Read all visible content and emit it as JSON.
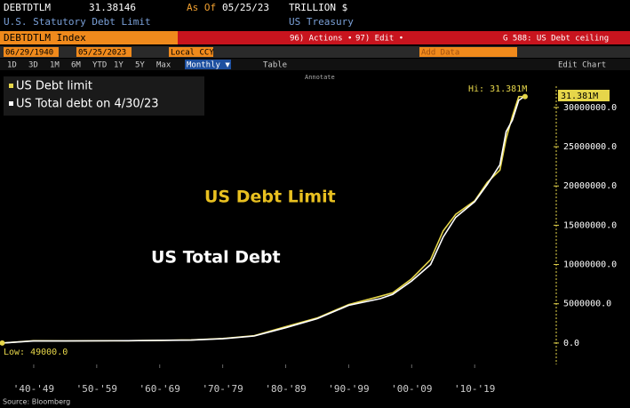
{
  "header": {
    "ticker": "DEBTDTLM",
    "last": "31.38146",
    "as_of_label": "As Of",
    "as_of": "05/25/23",
    "units": "TRILLION $",
    "description": "U.S. Statutory Debt Limit",
    "source_name": "US Treasury",
    "security": "DEBTDTLM Index",
    "actions": "96) Actions •",
    "edit": "97) Edit •",
    "page": "G 588: US Debt ceiling"
  },
  "toolbar": {
    "start": "06/29/1940",
    "end": "05/25/2023",
    "currency": "Local CCY",
    "periods": [
      "1D",
      "3D",
      "1M",
      "6M",
      "YTD",
      "1Y",
      "5Y",
      "Max"
    ],
    "frequency": "Monthly ▼",
    "table": "Table",
    "add_data": "Add Data",
    "edit_chart": "Edit Chart",
    "annotate": "Annotate"
  },
  "chart_data": {
    "type": "line",
    "annotations": [
      "US Debt Limit",
      "US Total Debt"
    ],
    "hi_label": "Hi: 31.381M",
    "last_label": "31.381M",
    "low_label": "Low: 49000.0",
    "source": "Source: Bloomberg",
    "x": [
      1940,
      1945,
      1950,
      1960,
      1970,
      1975,
      1980,
      1985,
      1990,
      1995,
      2000,
      2002,
      2005,
      2008,
      2010,
      2012,
      2015,
      2017,
      2019,
      2020,
      2021,
      2022,
      2023
    ],
    "series": [
      {
        "name": "US Debt limit",
        "color": "#e6d64a",
        "values": [
          49000,
          300000000,
          275000000,
          295000000,
          395000000,
          577000000,
          935000000,
          2079000000,
          3195000000,
          4900000000,
          5950000000,
          6400000000,
          8184000000,
          10615000000,
          14294000000,
          16394000000,
          18113000000,
          20456000000,
          22030000000,
          26000000000,
          28900000000,
          31381000000,
          31381000000
        ]
      },
      {
        "name": "US Total debt on 4/30/23",
        "color": "#ffffff",
        "values": [
          43000,
          259000000,
          257000000,
          290000000,
          380000000,
          540000000,
          900000000,
          1950000000,
          3100000000,
          4800000000,
          5650000000,
          6200000000,
          7900000000,
          10000000000,
          13500000000,
          16000000000,
          18000000000,
          20200000000,
          22700000000,
          26900000000,
          28400000000,
          30900000000,
          31460000000
        ]
      }
    ],
    "xlim": [
      1940,
      2024
    ],
    "xticks": [
      {
        "value": 1945,
        "label": "'40-'49"
      },
      {
        "value": 1955,
        "label": "'50-'59"
      },
      {
        "value": 1965,
        "label": "'60-'69"
      },
      {
        "value": 1975,
        "label": "'70-'79"
      },
      {
        "value": 1985,
        "label": "'80-'89"
      },
      {
        "value": 1995,
        "label": "'90-'99"
      },
      {
        "value": 2005,
        "label": "'00-'09"
      },
      {
        "value": 2015,
        "label": "'10-'19"
      }
    ],
    "ylim": [
      -2500000000,
      32700000000
    ],
    "yticks": [
      {
        "value": 0,
        "label": "0.0"
      },
      {
        "value": 5000000000,
        "label": "5000000.0"
      },
      {
        "value": 10000000000,
        "label": "10000000.0"
      },
      {
        "value": 15000000000,
        "label": "15000000.0"
      },
      {
        "value": 20000000000,
        "label": "20000000.0"
      },
      {
        "value": 25000000000,
        "label": "25000000.0"
      },
      {
        "value": 30000000000,
        "label": "30000000.0"
      }
    ],
    "grid": false
  }
}
